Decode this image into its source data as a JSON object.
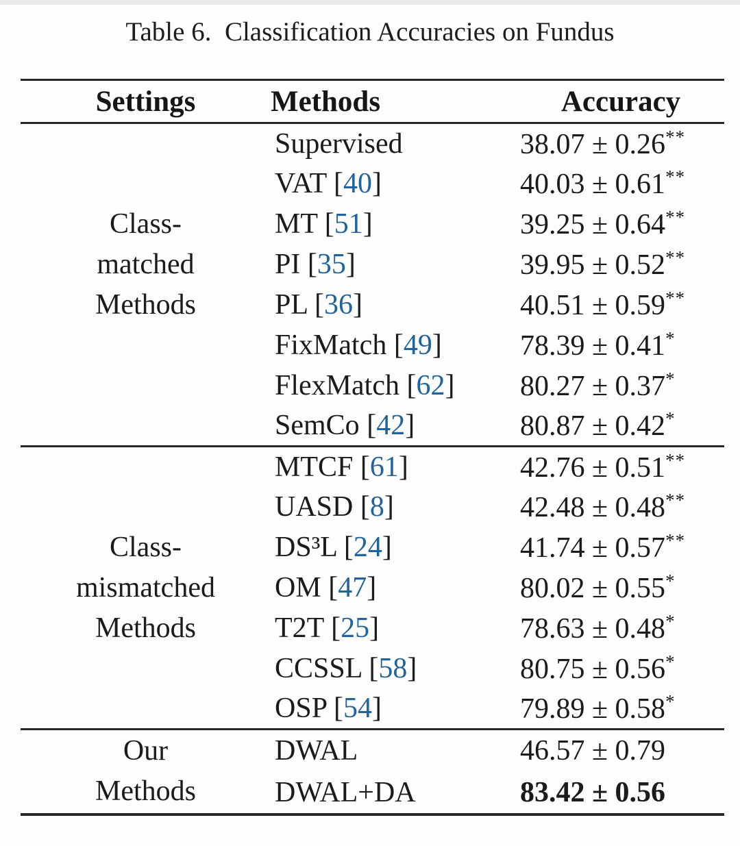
{
  "caption": "Table 6.  Classification Accuracies on Fundus",
  "columns": [
    "Settings",
    "Methods",
    "Accuracy"
  ],
  "citation_color": "#21639c",
  "plus_minus_symbol": "±",
  "significance_legend": {
    "double_star": "**",
    "single_star": "*"
  },
  "chart_data": {
    "type": "table",
    "title": "Table 6.  Classification Accuracies on Fundus",
    "columns": [
      "Settings",
      "Methods",
      "Accuracy"
    ]
  },
  "groups": [
    {
      "setting": [
        "Class-",
        "matched",
        "Methods"
      ],
      "rows": [
        {
          "method": "Supervised",
          "cite": "",
          "value": "38.07 ± 0.26",
          "stars": "**",
          "bold": false
        },
        {
          "method": "VAT",
          "cite": "40",
          "value": "40.03 ± 0.61",
          "stars": "**",
          "bold": false
        },
        {
          "method": "MT",
          "cite": "51",
          "value": "39.25 ± 0.64",
          "stars": "**",
          "bold": false
        },
        {
          "method": "PI",
          "cite": "35",
          "value": "39.95 ± 0.52",
          "stars": "**",
          "bold": false
        },
        {
          "method": "PL",
          "cite": "36",
          "value": "40.51 ± 0.59",
          "stars": "**",
          "bold": false
        },
        {
          "method": "FixMatch",
          "cite": "49",
          "value": "78.39 ± 0.41",
          "stars": "*",
          "bold": false
        },
        {
          "method": "FlexMatch",
          "cite": "62",
          "value": "80.27 ± 0.37",
          "stars": "*",
          "bold": false
        },
        {
          "method": "SemCo",
          "cite": "42",
          "value": "80.87 ± 0.42",
          "stars": "*",
          "bold": false
        }
      ]
    },
    {
      "setting": [
        "Class-",
        "mismatched",
        "Methods"
      ],
      "rows": [
        {
          "method": "MTCF",
          "cite": "61",
          "value": "42.76 ± 0.51",
          "stars": "**",
          "bold": false
        },
        {
          "method": "UASD",
          "cite": "8",
          "value": "42.48 ± 0.48",
          "stars": "**",
          "bold": false
        },
        {
          "method": "DS³L",
          "cite": "24",
          "value": "41.74 ± 0.57",
          "stars": "**",
          "bold": false
        },
        {
          "method": "OM",
          "cite": "47",
          "value": "80.02 ± 0.55",
          "stars": "*",
          "bold": false
        },
        {
          "method": "T2T",
          "cite": "25",
          "value": "78.63 ± 0.48",
          "stars": "*",
          "bold": false
        },
        {
          "method": "CCSSL",
          "cite": "58",
          "value": "80.75 ± 0.56",
          "stars": "*",
          "bold": false
        },
        {
          "method": "OSP",
          "cite": "54",
          "value": "79.89 ± 0.58",
          "stars": "*",
          "bold": false
        }
      ]
    },
    {
      "setting": [
        "Our",
        "Methods"
      ],
      "rows": [
        {
          "method": "DWAL",
          "cite": "",
          "value": "46.57 ± 0.79",
          "stars": "",
          "bold": false
        },
        {
          "method": "DWAL+DA",
          "cite": "",
          "value": "83.42 ± 0.56",
          "stars": "",
          "bold": true
        }
      ]
    }
  ]
}
